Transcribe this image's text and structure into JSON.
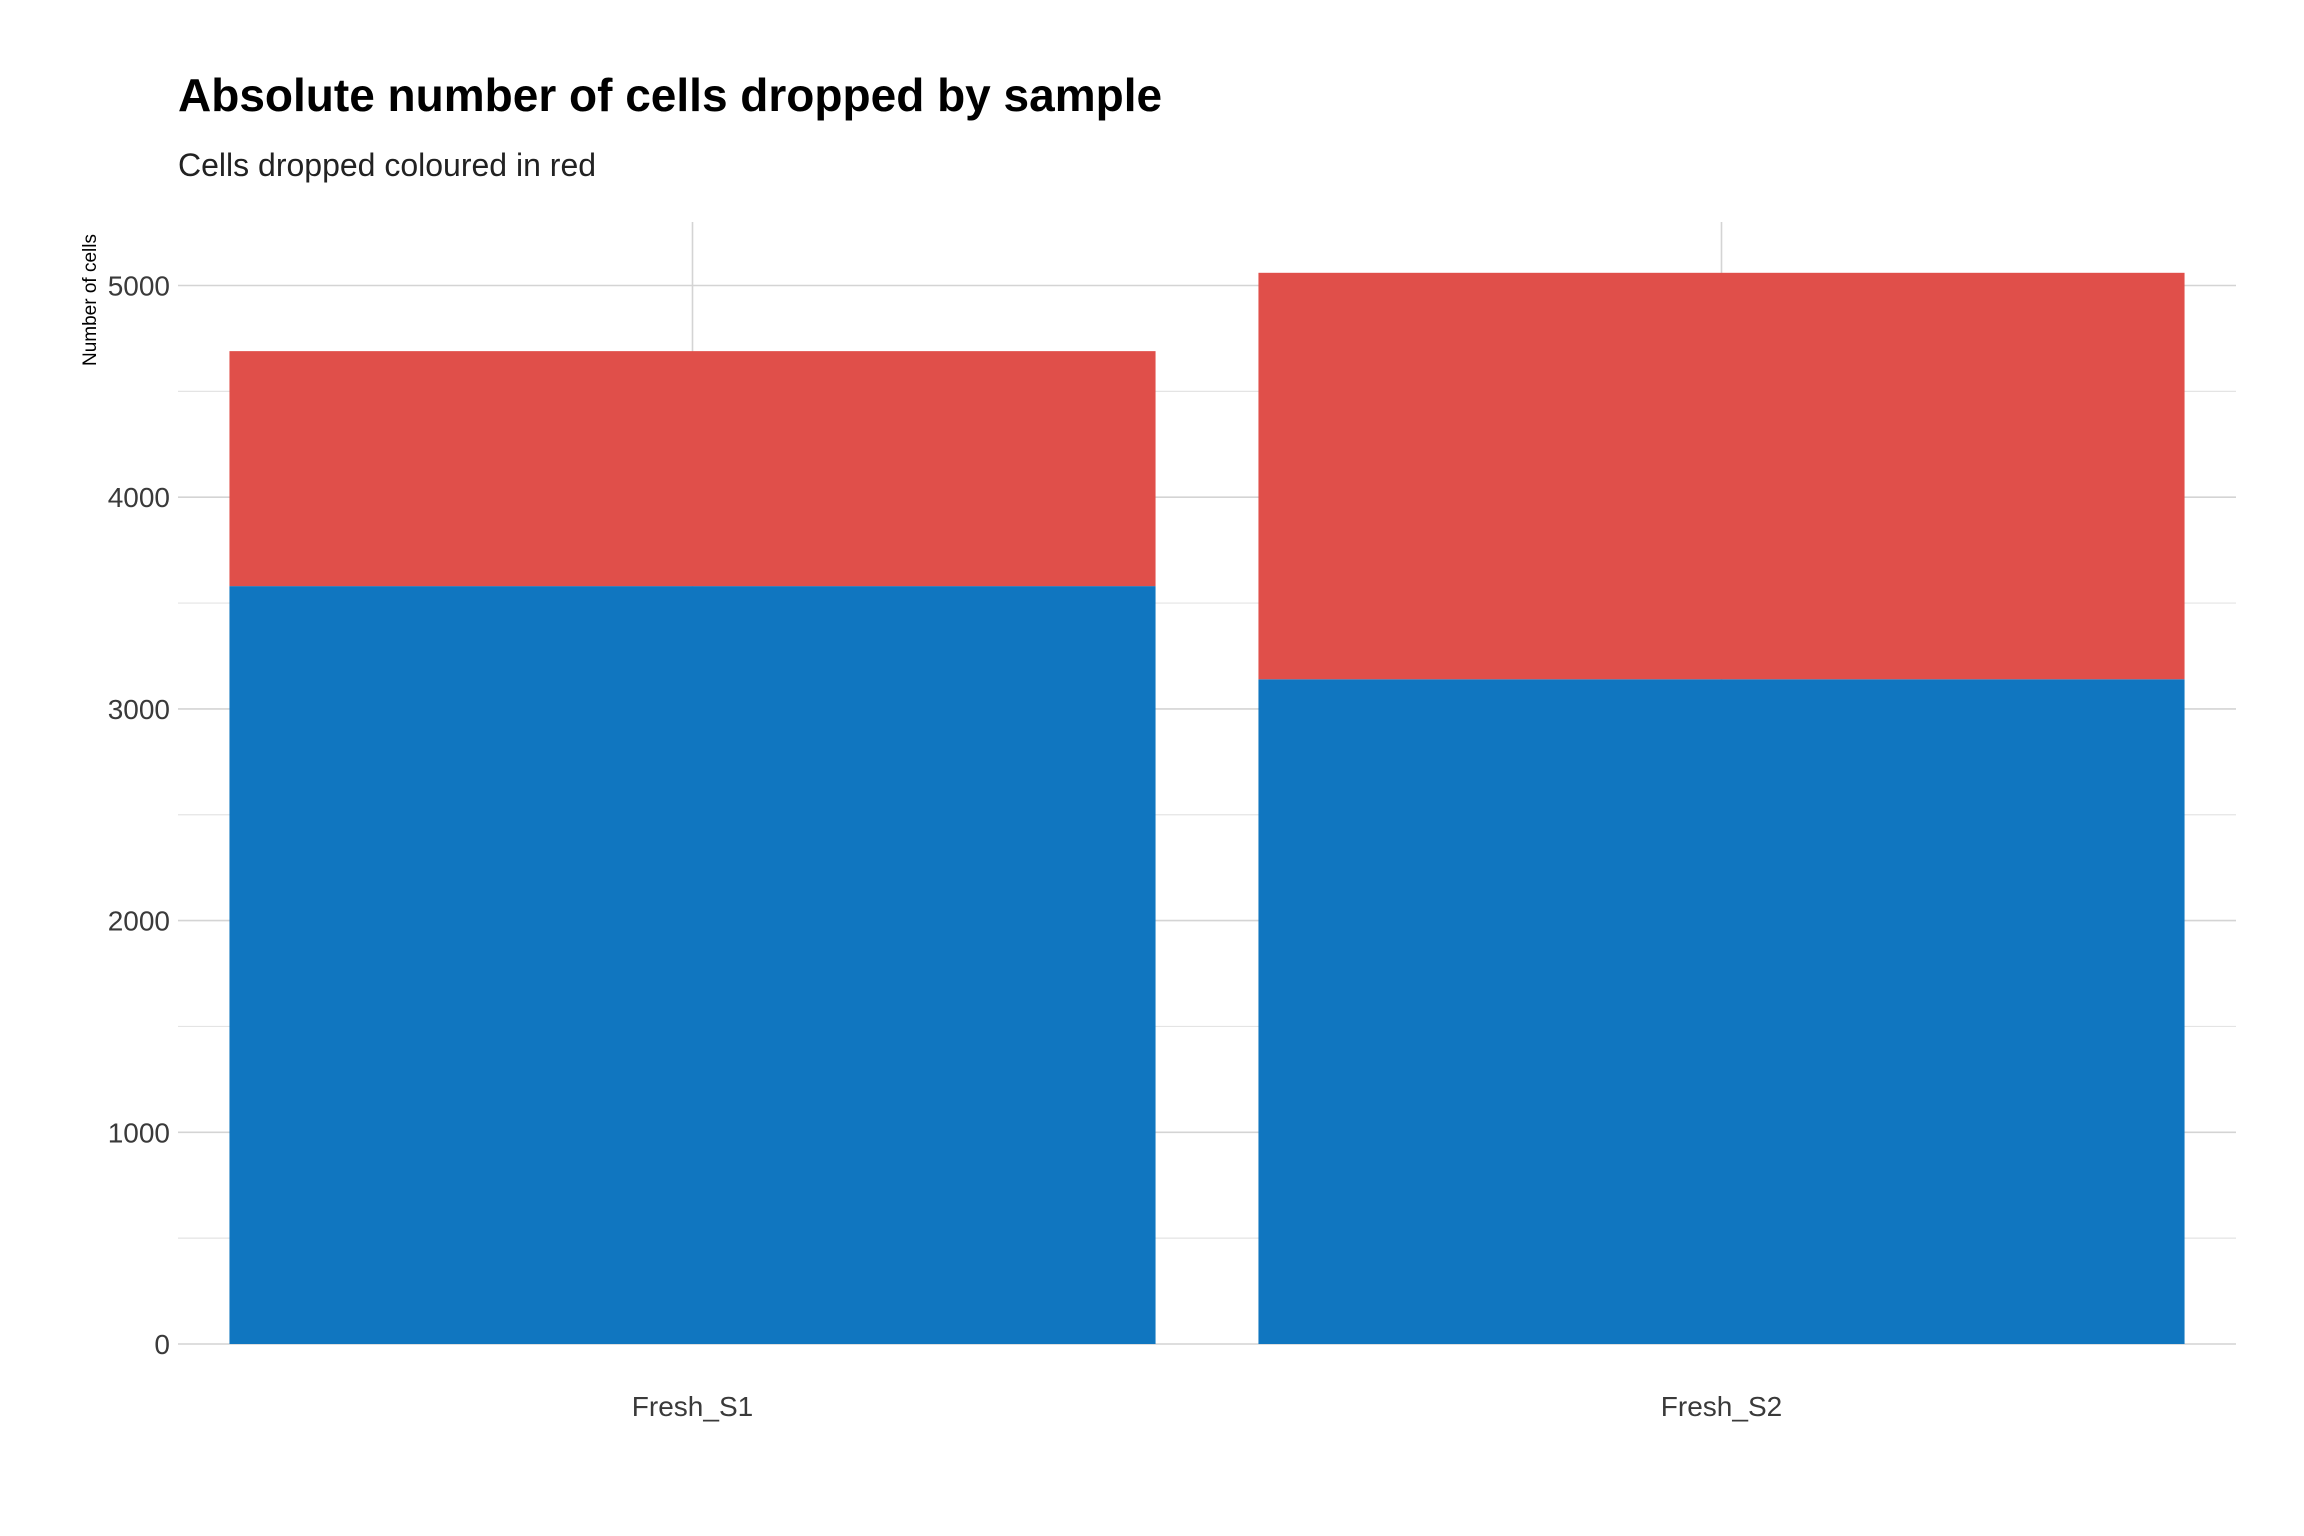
{
  "chart_data": {
    "type": "bar",
    "stacked": true,
    "title": "Absolute number of cells dropped by sample",
    "subtitle": "Cells dropped coloured in red",
    "xlabel": "",
    "ylabel": "Number of cells",
    "categories": [
      "Fresh_S1",
      "Fresh_S2"
    ],
    "series": [
      {
        "values": [
          3580,
          3140
        ],
        "color": "#1076c0"
      },
      {
        "values": [
          1110,
          1920
        ],
        "color": "#e04f4a"
      }
    ],
    "ylim": [
      0,
      5300
    ],
    "yticks": [
      0,
      1000,
      2000,
      3000,
      4000,
      5000
    ],
    "grid": true,
    "legend": "none"
  }
}
